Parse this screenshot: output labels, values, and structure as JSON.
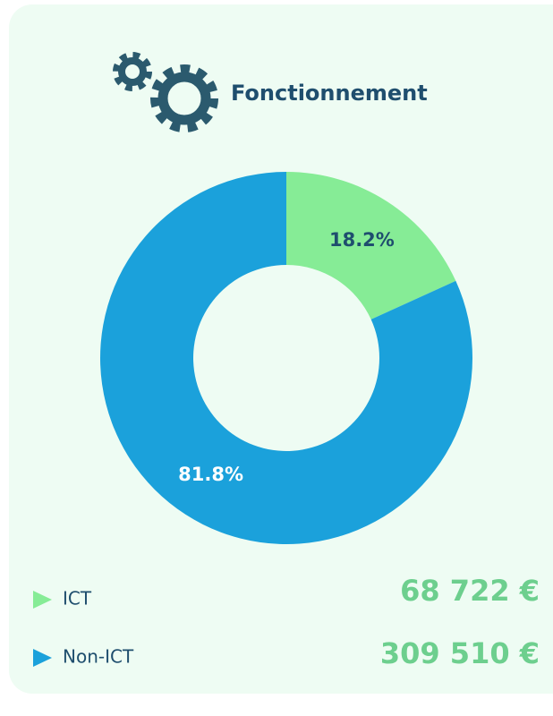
{
  "chart_data": {
    "type": "pie",
    "donut": true,
    "title": "Fonctionnement",
    "categories": [
      "ICT",
      "Non-ICT"
    ],
    "values": [
      18.2,
      81.8
    ],
    "value_labels": [
      "18.2%",
      "81.8%"
    ],
    "colors": [
      "#86ec96",
      "#1ba1db"
    ],
    "label_colors": [
      "#1f4e6e",
      "#ffffff"
    ],
    "amounts": [
      "68 722 €",
      "309 510 €"
    ]
  }
}
